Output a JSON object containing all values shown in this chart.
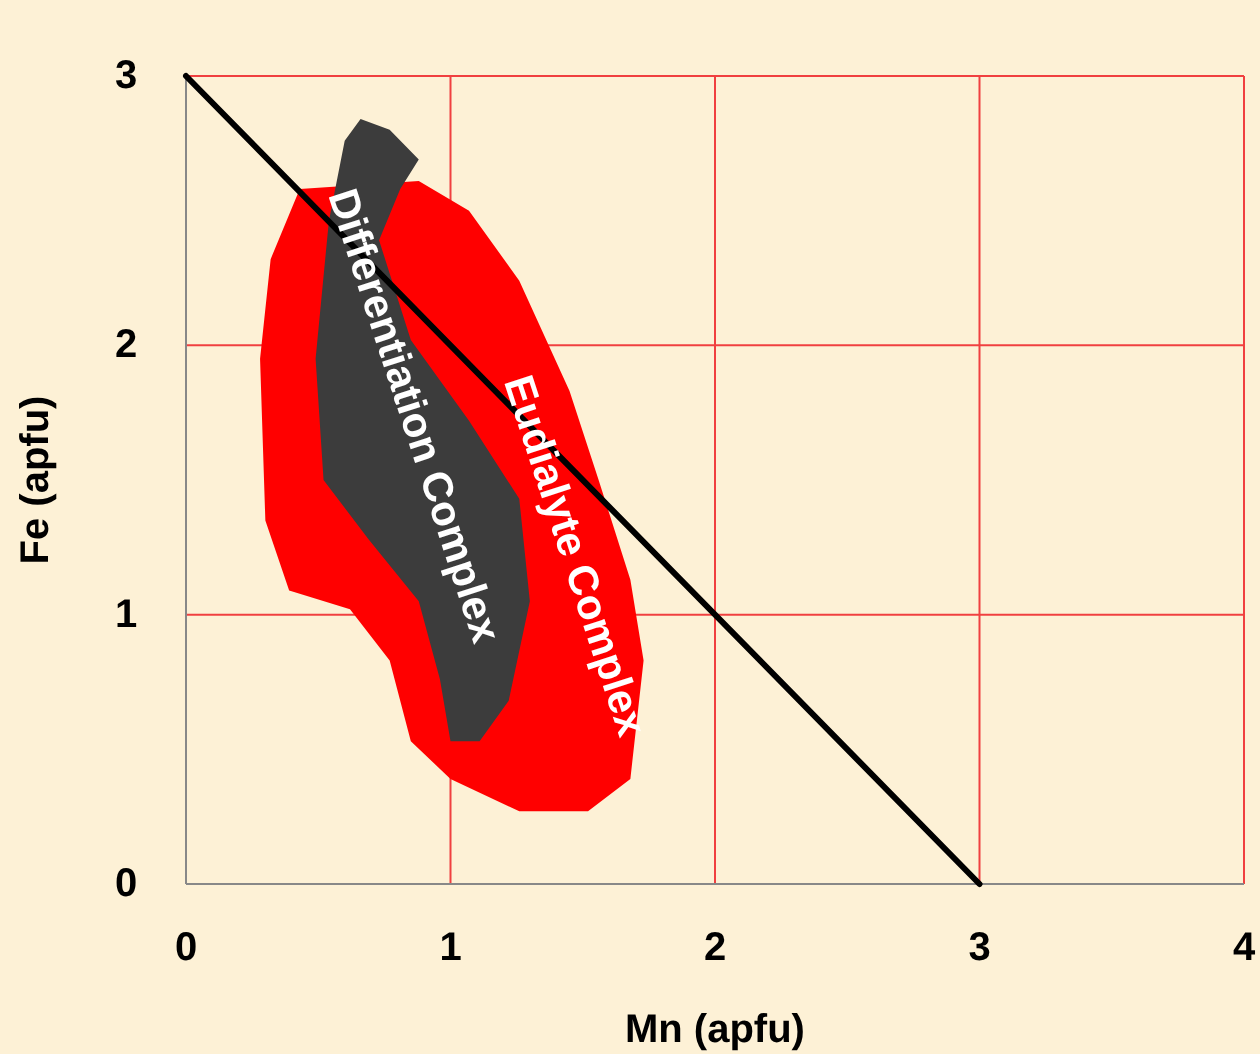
{
  "chart_data": {
    "type": "area",
    "xlabel": "Mn (apfu)",
    "ylabel": "Fe (apfu)",
    "xlim": [
      0,
      4
    ],
    "ylim": [
      0,
      3
    ],
    "xticks": [
      0,
      1,
      2,
      3,
      4
    ],
    "yticks": [
      0,
      1,
      2,
      3
    ],
    "grid": true,
    "series": [
      {
        "name": "Eudialyte Complex",
        "color": "#ff0000",
        "x": [
          0.43,
          0.32,
          0.28,
          0.3,
          0.39,
          0.62,
          0.77,
          0.85,
          1.0,
          1.26,
          1.52,
          1.68,
          1.73,
          1.68,
          1.56,
          1.45,
          1.26,
          1.07,
          0.88
        ],
        "values": [
          2.58,
          2.32,
          1.95,
          1.35,
          1.09,
          1.02,
          0.83,
          0.53,
          0.39,
          0.27,
          0.27,
          0.39,
          0.83,
          1.13,
          1.5,
          1.83,
          2.24,
          2.5,
          2.61
        ]
      },
      {
        "name": "Differentiation Complex",
        "color": "#3c3c3c",
        "x": [
          0.66,
          0.77,
          0.88,
          0.81,
          0.73,
          0.85,
          1.07,
          1.26,
          1.3,
          1.22,
          1.11,
          1.0,
          0.96,
          0.88,
          0.69,
          0.52,
          0.49,
          0.54,
          0.6
        ],
        "values": [
          2.84,
          2.8,
          2.69,
          2.58,
          2.39,
          2.02,
          1.72,
          1.43,
          1.05,
          0.68,
          0.53,
          0.53,
          0.76,
          1.05,
          1.28,
          1.5,
          1.95,
          2.46,
          2.76
        ]
      },
      {
        "type": "line",
        "color": "#000000",
        "x": [
          0,
          3
        ],
        "values": [
          3,
          0
        ]
      }
    ]
  }
}
